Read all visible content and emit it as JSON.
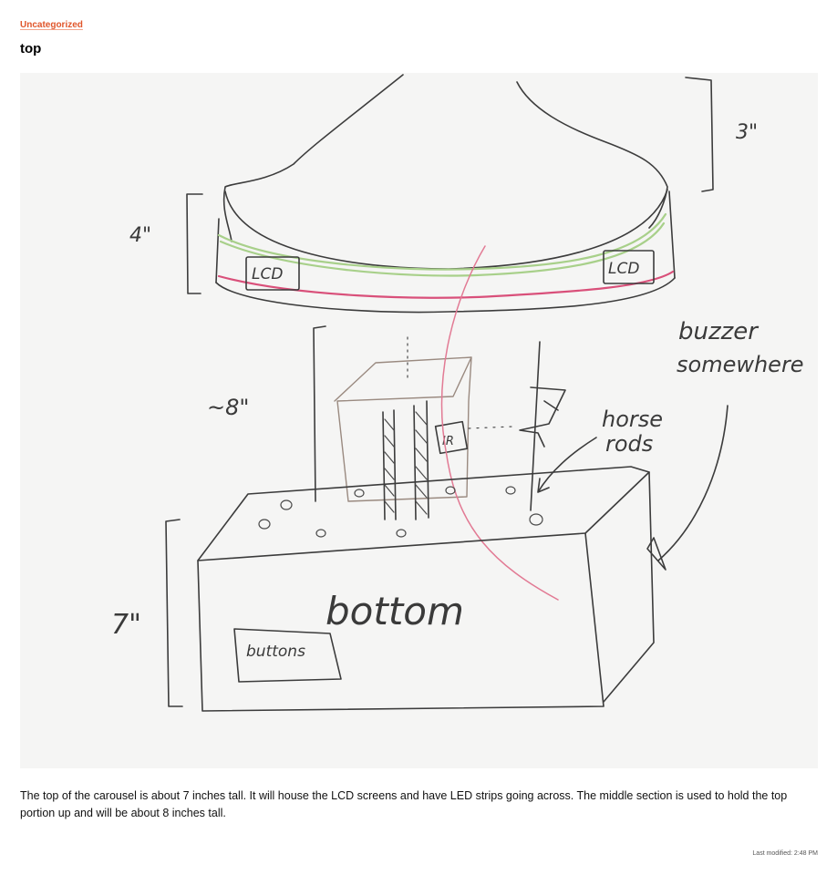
{
  "post": {
    "category": "Uncategorized",
    "title": "top",
    "description": "The top of the carousel is about 7 inches tall. It will house the LCD screens and have LED strips going across. The middle section is used to hold the top portion up and will be about 8 inches tall.",
    "last_modified": "Last modified: 2:48 PM"
  },
  "sketch": {
    "labels": {
      "dim_3in": "3\"",
      "dim_4in": "4\"",
      "dim_8in": "~8\"",
      "dim_7in": "7\"",
      "lcd_left": "LCD",
      "lcd_right": "LCD",
      "buzzer_line1": "buzzer",
      "buzzer_line2": "somewhere",
      "horse_line1": "horse",
      "horse_line2": "rods",
      "ir": "IR",
      "bottom": "bottom",
      "buttons": "buttons"
    },
    "colors": {
      "ink": "#3c3c3c",
      "led_green": "#a8d08a",
      "led_pink": "#d9507a",
      "frame_brown": "#9a8a80",
      "paper": "#f5f5f4"
    }
  },
  "theme": {
    "category_color": "#e0552a"
  }
}
